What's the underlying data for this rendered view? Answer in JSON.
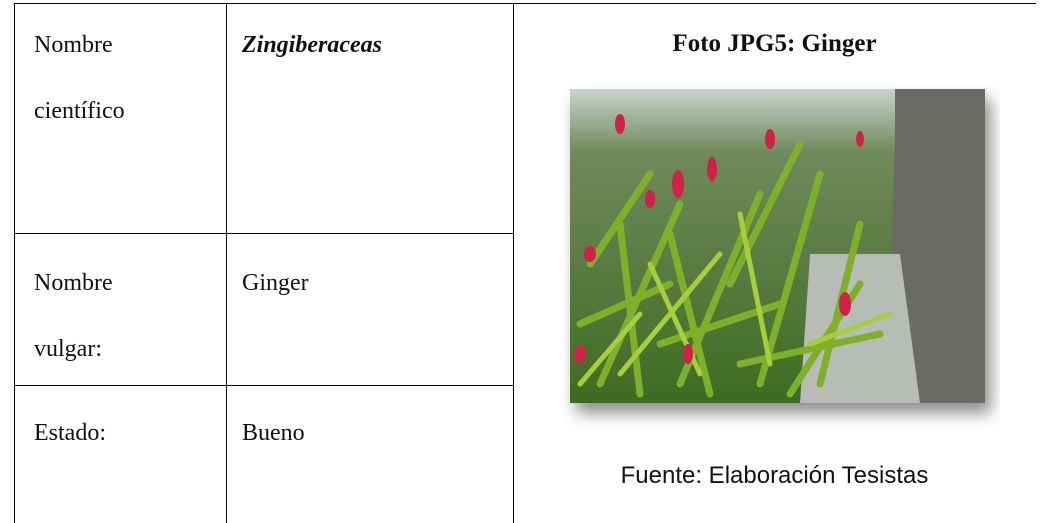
{
  "table": {
    "rows": [
      [
        "Nombre científico",
        "Zingiberaceas"
      ],
      [
        "Nombre vulgar:",
        "Ginger"
      ],
      [
        "Estado:",
        "Bueno"
      ]
    ]
  },
  "photo": {
    "title": "Foto JPG5: Ginger",
    "caption": "Fuente: Elaboración Tesistas"
  }
}
